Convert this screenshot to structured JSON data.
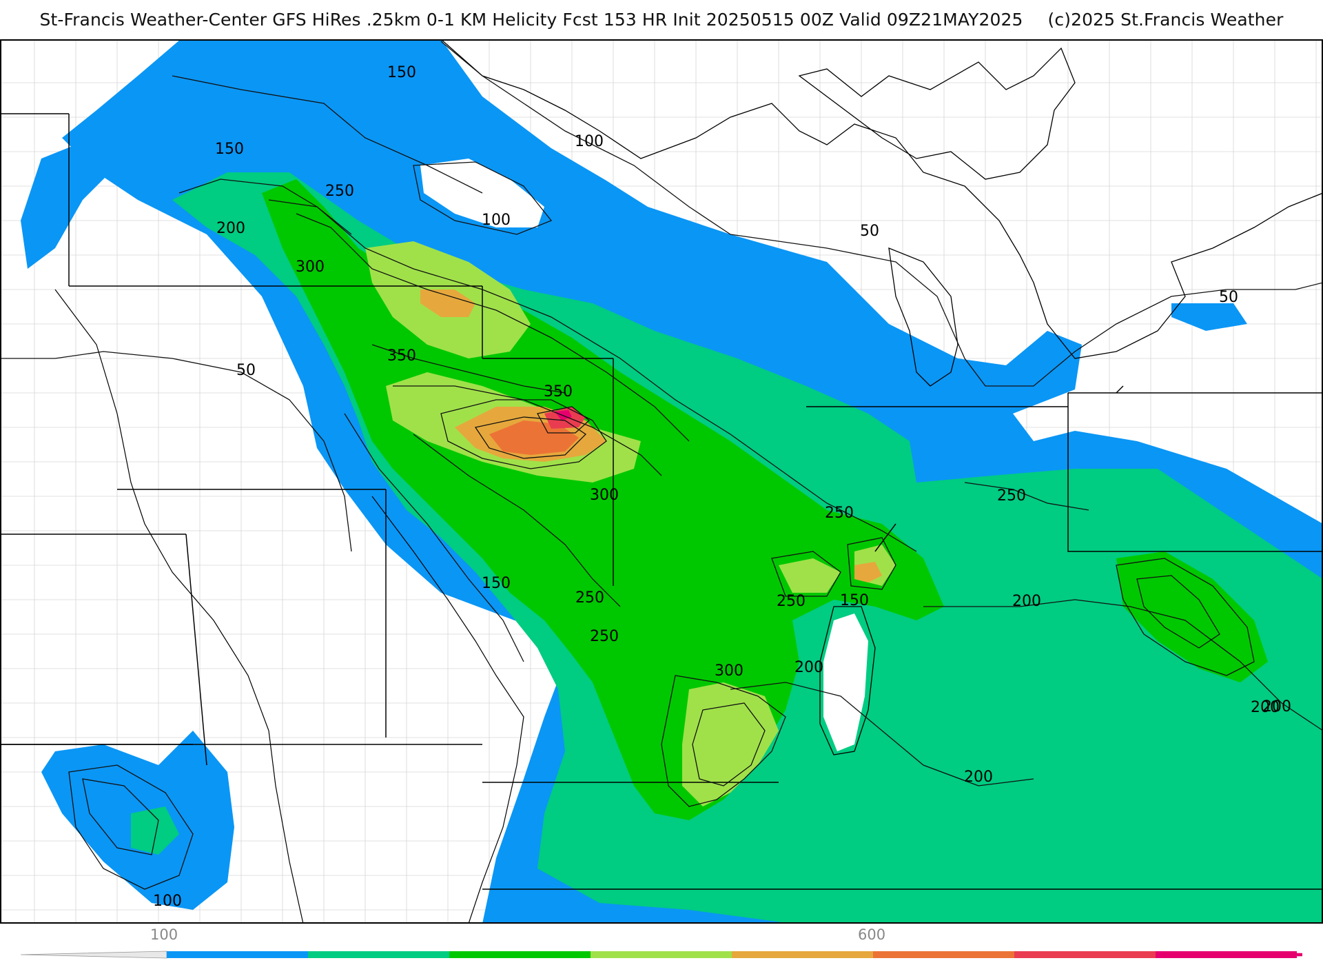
{
  "header": {
    "title": "St-Francis Weather-Center GFS HiRes .25km 0-1 KM Helicity Fcst 153 HR Init 20250515 00Z  Valid 09Z21MAY2025",
    "copyright": "(c)2025 St.Francis Weather"
  },
  "map": {
    "field": "0-1 KM Helicity",
    "contour_labels": [
      "150",
      "150",
      "250",
      "200",
      "300",
      "100",
      "100",
      "350",
      "350",
      "50",
      "50",
      "50",
      "300",
      "250",
      "250",
      "250",
      "150",
      "250",
      "250",
      "150",
      "200",
      "300",
      "200",
      "200",
      "200",
      "200",
      "100"
    ]
  },
  "colorbar": {
    "tick_labels": [
      "100",
      "600"
    ],
    "colors": [
      "#0a96f5",
      "#00cc82",
      "#00c800",
      "#a0e14a",
      "#e6a83c",
      "#ec7336",
      "#ea3c50",
      "#e6006e"
    ]
  }
}
